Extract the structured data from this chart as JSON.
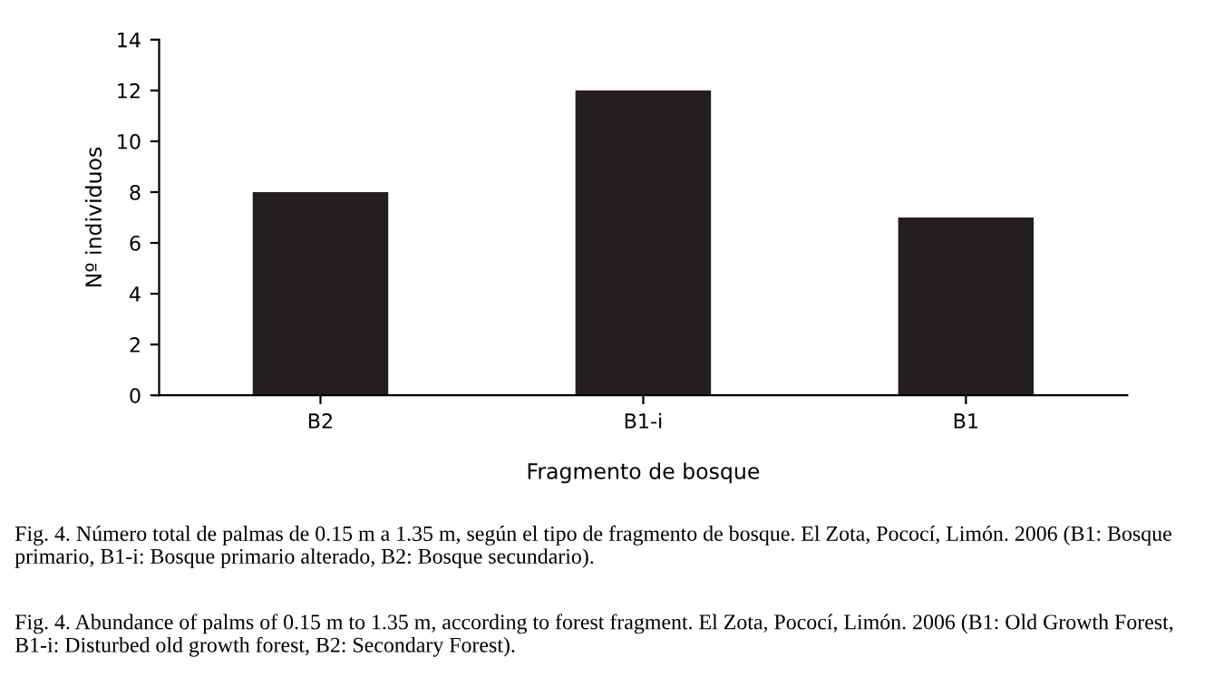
{
  "chart_data": {
    "type": "bar",
    "xlabel": "Fragmento de bosque",
    "ylabel": "Nº individuos",
    "categories": [
      "B2",
      "B1-i",
      "B1"
    ],
    "values": [
      8,
      12,
      7
    ],
    "color": "#231f20",
    "ylim": [
      0,
      14
    ],
    "yticks": [
      0,
      2,
      4,
      6,
      8,
      10,
      12,
      14
    ],
    "grid": false,
    "legend": false,
    "annotations": [
      "Fig. 4. Número total de palmas de 0.15 m a 1.35 m, según el tipo de fragmento de bosque. El Zota, Pococí, Limón. 2006 (B1: Bosque primario, B1-i: Bosque primario alterado, B2: Bosque secundario).",
      "Fig. 4. Abundance of palms of 0.15 m to 1.35 m, according to forest fragment. El Zota, Pococí, Limón. 2006 (B1: Old Growth Forest, B1-i: Disturbed old growth forest, B2: Secondary Forest)."
    ]
  }
}
